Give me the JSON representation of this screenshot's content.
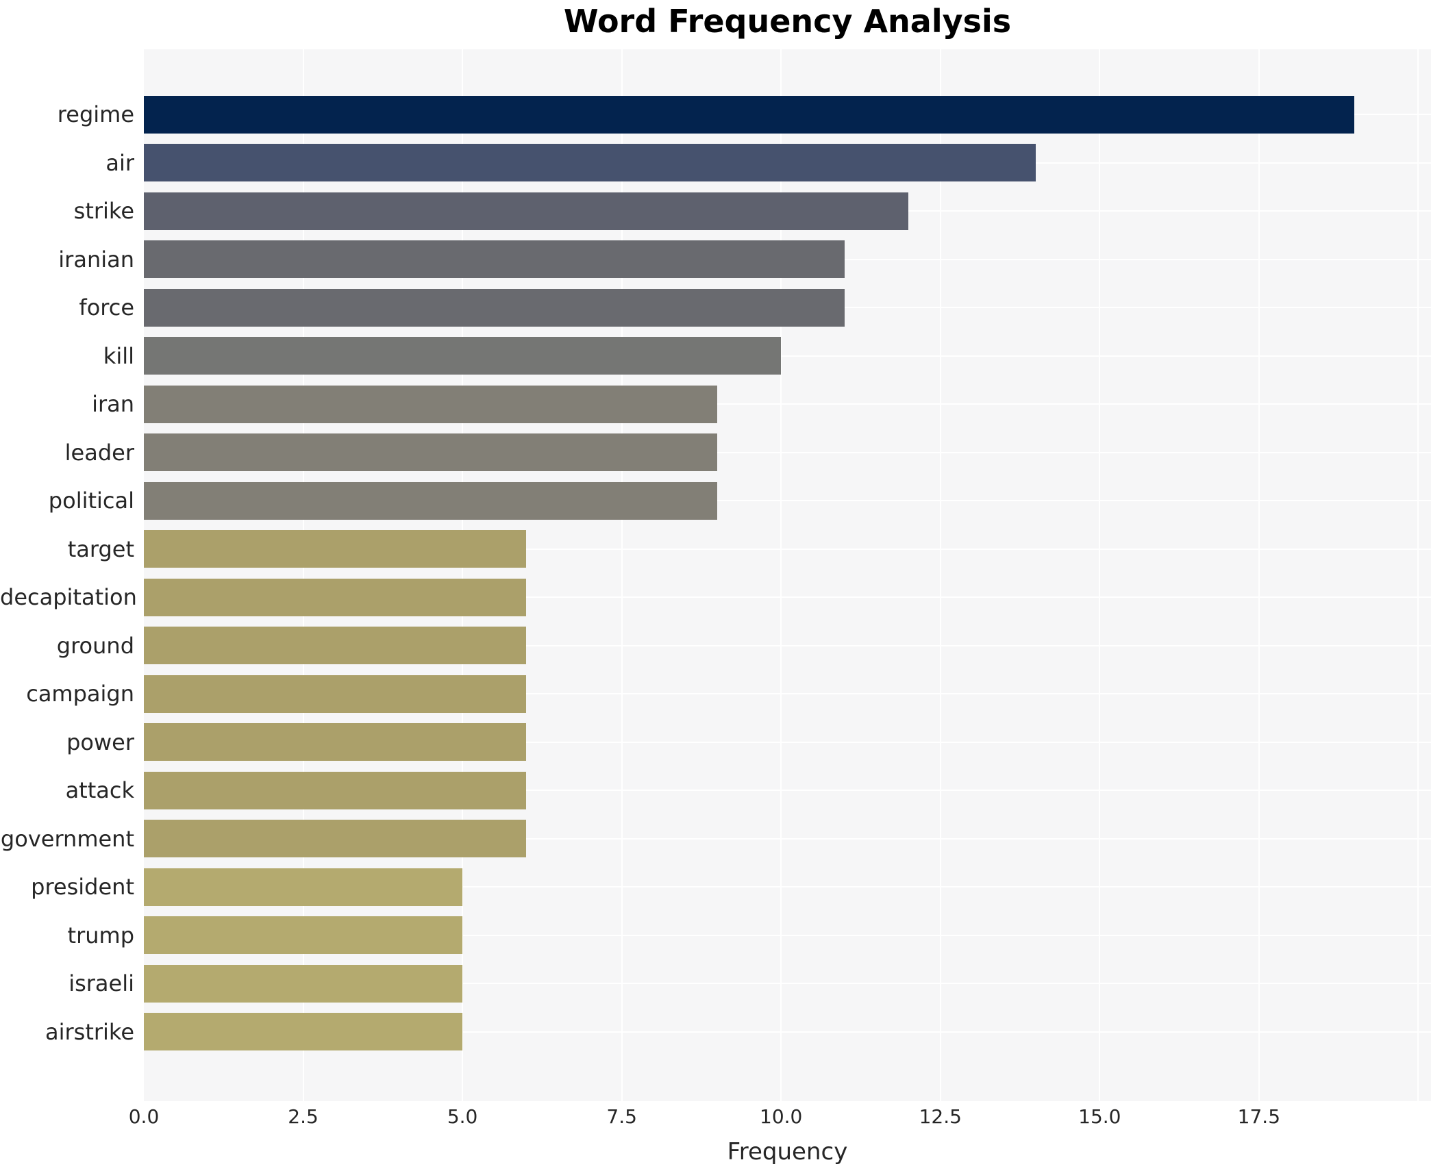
{
  "chart_data": {
    "type": "bar",
    "orientation": "horizontal",
    "title": "Word Frequency Analysis",
    "xlabel": "Frequency",
    "ylabel": "",
    "categories": [
      "regime",
      "air",
      "strike",
      "iranian",
      "force",
      "kill",
      "iran",
      "leader",
      "political",
      "target",
      "decapitation",
      "ground",
      "campaign",
      "power",
      "attack",
      "government",
      "president",
      "trump",
      "israeli",
      "airstrike"
    ],
    "values": [
      19,
      14,
      12,
      11,
      11,
      10,
      9,
      9,
      9,
      6,
      6,
      6,
      6,
      6,
      6,
      6,
      5,
      5,
      5,
      5
    ],
    "xlim": [
      0,
      20.2
    ],
    "xtick_values": [
      0,
      2.5,
      5,
      7.5,
      10,
      12.5,
      15,
      17.5
    ],
    "xtick_labels": [
      "0.0",
      "2.5",
      "5.0",
      "7.5",
      "10.0",
      "12.5",
      "15.0",
      "17.5"
    ],
    "extra_gridline_values": [
      20
    ],
    "grid": true,
    "legend": false,
    "bar_colors": [
      "#03234e",
      "#46526e",
      "#5e616e",
      "#696a6f",
      "#696a6f",
      "#757674",
      "#827f76",
      "#827f76",
      "#827f76",
      "#aba06a",
      "#aba06a",
      "#aba06a",
      "#aba06a",
      "#aba06a",
      "#aba06a",
      "#aba06a",
      "#b4aa6f",
      "#b4aa6f",
      "#b4aa6f",
      "#b4aa6f"
    ],
    "plot_background": "#f6f6f7",
    "figure_background": "#ffffff",
    "gridline_color": "#ffffff",
    "text_color": "#262626"
  }
}
